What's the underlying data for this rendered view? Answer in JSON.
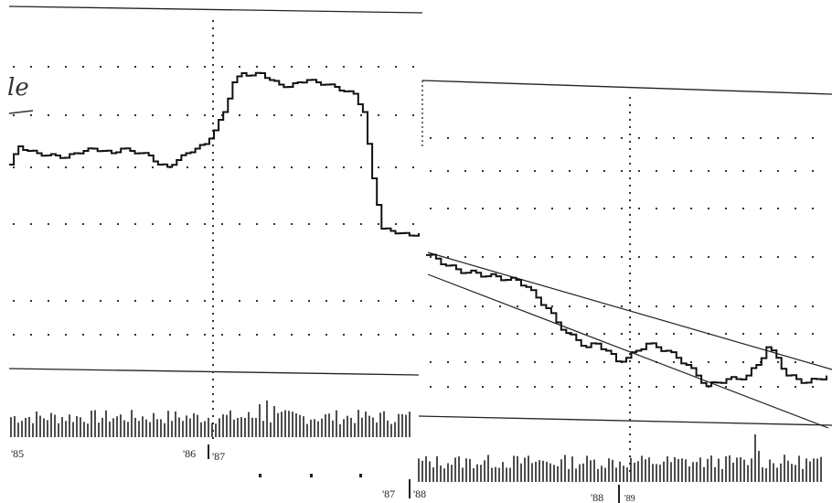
{
  "chart_data": [
    {
      "type": "line",
      "panel": "left",
      "title": "",
      "xlabel": "",
      "ylabel": "",
      "x_tick_labels": [
        "'85",
        "'86",
        "'87",
        "'87"
      ],
      "annotation": "le",
      "grid": "dotted horizontal",
      "x": [
        "'85",
        "'85",
        "'85",
        "'85",
        "'85",
        "'85",
        "'85",
        "'85",
        "'85",
        "'85",
        "'85",
        "'85",
        "'85",
        "'85",
        "'85",
        "'85",
        "'85",
        "'85",
        "'86",
        "'86",
        "'86",
        "'86",
        "'86",
        "'86",
        "'86",
        "'86",
        "'86",
        "'86",
        "'86",
        "'86",
        "'86",
        "'86",
        "'86",
        "'86",
        "'86",
        "'86",
        "'86",
        "'86",
        "'87",
        "'87",
        "'87",
        "'87",
        "'87",
        "'87",
        "'87"
      ],
      "values": [
        48,
        56,
        54,
        53,
        52,
        52,
        51,
        53,
        54,
        55,
        54,
        53,
        55,
        54,
        53,
        52,
        48,
        47,
        50,
        53,
        55,
        57,
        63,
        71,
        84,
        88,
        87,
        88,
        85,
        83,
        82,
        84,
        85,
        84,
        83,
        82,
        80,
        79,
        71,
        42,
        20,
        19,
        18,
        17,
        18
      ]
    },
    {
      "type": "line",
      "panel": "right",
      "title": "",
      "xlabel": "",
      "ylabel": "",
      "x_tick_labels": [
        "'87",
        "'88",
        "'88",
        "'89"
      ],
      "grid": "dotted horizontal",
      "trend_channel": "descending",
      "values": [
        39,
        38,
        36,
        35,
        34,
        34,
        33,
        33,
        32,
        32,
        30,
        27,
        24,
        20,
        17,
        15,
        13,
        14,
        12,
        9,
        10,
        12,
        14,
        13,
        12,
        10,
        8,
        5,
        2,
        3,
        4,
        4,
        5,
        8,
        13,
        10,
        5,
        4,
        3,
        4,
        5
      ]
    }
  ],
  "labels": {
    "left_ticks": [
      "'85",
      "'86",
      "'87"
    ],
    "mid_tick": "'87",
    "right_ticks": [
      "'88",
      "'88",
      "'89"
    ],
    "annotation": "le"
  }
}
